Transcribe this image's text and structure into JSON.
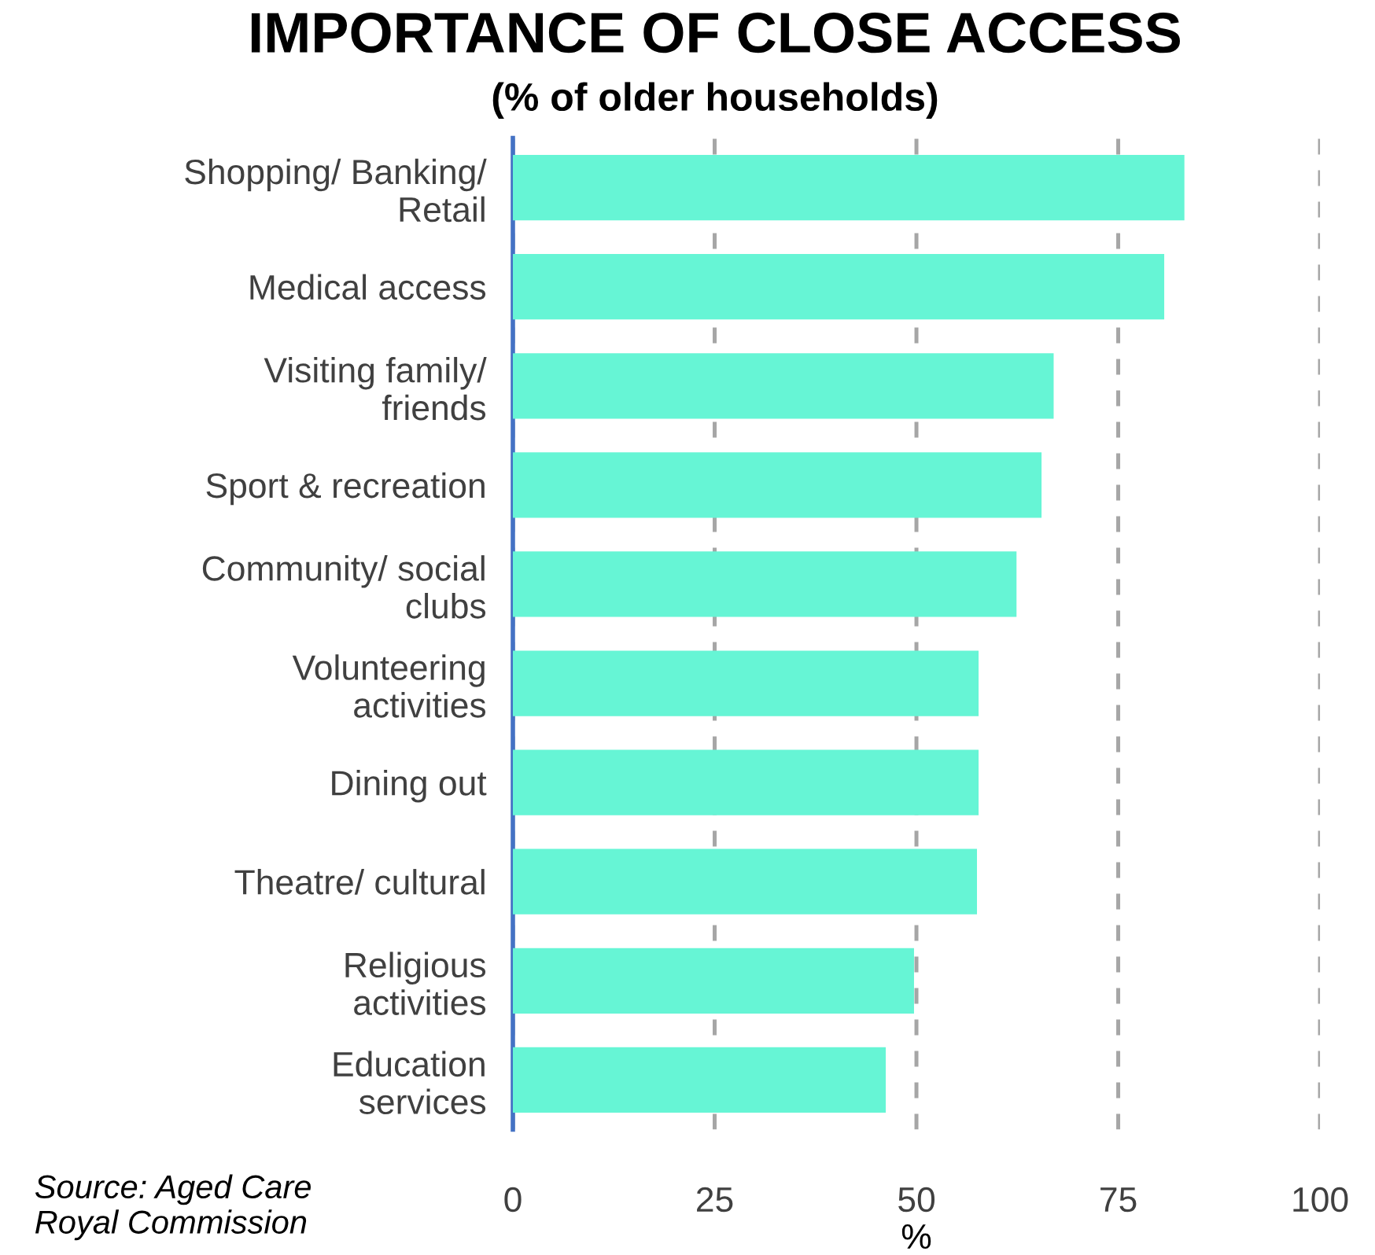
{
  "chart_data": {
    "type": "bar",
    "orientation": "horizontal",
    "title": "IMPORTANCE OF CLOSE ACCESS",
    "subtitle": "(% of older households)",
    "xlabel": "%",
    "categories": [
      "Shopping/ Banking/\nRetail",
      "Medical access",
      "Visiting family/\nfriends",
      "Sport & recreation",
      "Community/ social\nclubs",
      "Volunteering\nactivities",
      "Dining out",
      "Theatre/ cultural",
      "Religious\nactivities",
      "Education\nservices"
    ],
    "values": [
      83.2,
      80.7,
      67,
      65.5,
      62.4,
      57.7,
      57.7,
      57.5,
      49.7,
      46.2
    ],
    "color": "#66f5d5",
    "xlim": [
      0,
      100
    ],
    "xticks": [
      0,
      25,
      50,
      75,
      100
    ],
    "grid": "x",
    "legend": false,
    "annotations": [
      "Source: Aged Care\nRoyal Commission"
    ]
  }
}
